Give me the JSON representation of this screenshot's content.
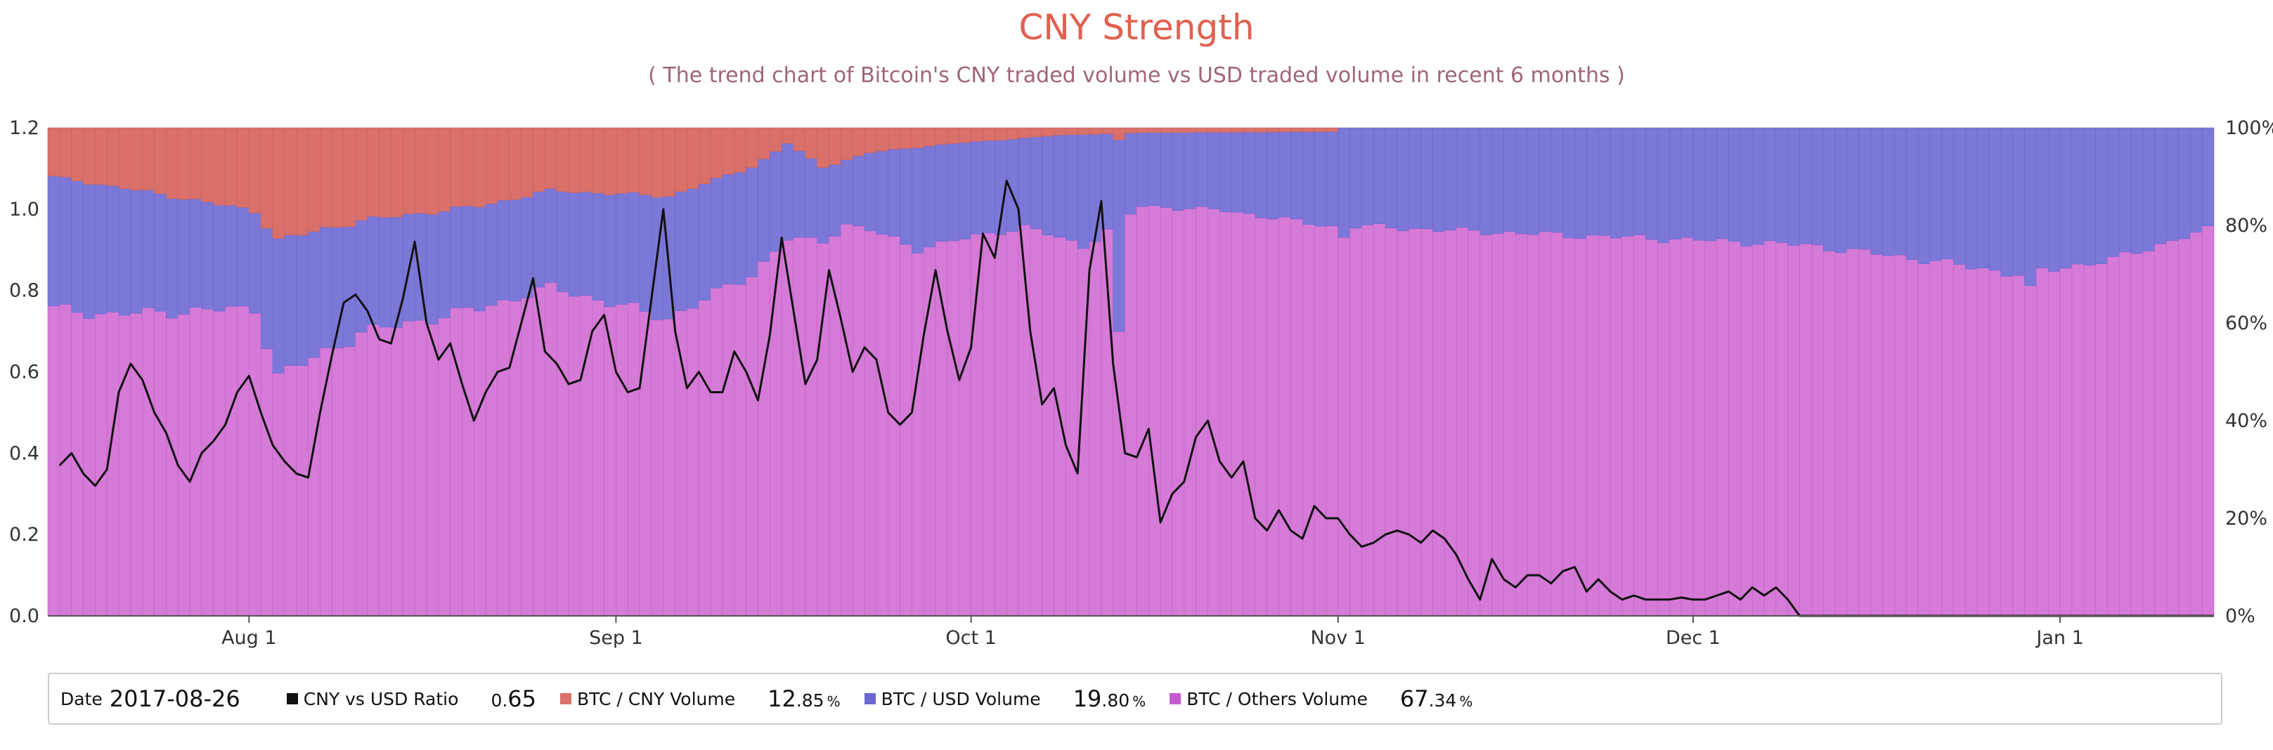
{
  "chart_data": {
    "type": "bar",
    "title": "CNY Strength",
    "subtitle": "( The trend chart of Bitcoin's CNY traded volume vs USD traded volume in recent 6 months )",
    "stacked": true,
    "x_range": [
      "2017-07-15",
      "2018-01-14"
    ],
    "x_ticks": [
      "Aug 1",
      "Sep 1",
      "Oct 1",
      "Nov 1",
      "Dec 1",
      "Jan 1"
    ],
    "y_left": {
      "ticks": [
        "0.0",
        "0.2",
        "0.4",
        "0.6",
        "0.8",
        "1.0",
        "1.2"
      ],
      "range": [
        0,
        1.2
      ]
    },
    "y_right": {
      "ticks": [
        "0%",
        "20%",
        "40%",
        "60%",
        "80%",
        "100%"
      ],
      "range": [
        0,
        100
      ]
    },
    "grid": false,
    "legend_position": "bottom",
    "series": [
      {
        "name": "BTC / CNY Volume",
        "color": "#d9706a",
        "unit": "%",
        "keyframes": [
          [
            "2017-07-15",
            10
          ],
          [
            "2017-07-23",
            13
          ],
          [
            "2017-08-01",
            17
          ],
          [
            "2017-08-03",
            23
          ],
          [
            "2017-08-10",
            19
          ],
          [
            "2017-08-20",
            16
          ],
          [
            "2017-08-26",
            12.85
          ],
          [
            "2017-09-05",
            14
          ],
          [
            "2017-09-12",
            8
          ],
          [
            "2017-09-15",
            3
          ],
          [
            "2017-09-18",
            8
          ],
          [
            "2017-09-22",
            5
          ],
          [
            "2017-09-30",
            3
          ],
          [
            "2017-10-08",
            1.5
          ],
          [
            "2017-10-15",
            1
          ],
          [
            "2017-10-31",
            0.8
          ],
          [
            "2017-11-01",
            0
          ],
          [
            "2018-01-14",
            0
          ]
        ]
      },
      {
        "name": "BTC / USD Volume",
        "color": "#7b78d8",
        "unit": "%",
        "keyframes": [
          [
            "2017-07-15",
            27
          ],
          [
            "2017-07-20",
            26
          ],
          [
            "2017-08-01",
            20
          ],
          [
            "2017-08-03",
            28
          ],
          [
            "2017-08-10",
            23
          ],
          [
            "2017-08-20",
            21
          ],
          [
            "2017-08-26",
            19.8
          ],
          [
            "2017-09-05",
            25
          ],
          [
            "2017-09-12",
            22
          ],
          [
            "2017-09-20",
            13
          ],
          [
            "2017-09-26",
            21
          ],
          [
            "2017-10-05",
            18
          ],
          [
            "2017-10-10",
            23
          ],
          [
            "2017-10-15",
            15
          ],
          [
            "2017-10-22",
            16
          ],
          [
            "2017-11-01",
            20
          ],
          [
            "2017-11-10",
            21
          ],
          [
            "2017-11-20",
            22
          ],
          [
            "2017-12-01",
            23
          ],
          [
            "2017-12-10",
            24
          ],
          [
            "2017-12-20",
            27
          ],
          [
            "2017-12-28",
            30
          ],
          [
            "2018-01-05",
            27
          ],
          [
            "2018-01-14",
            20
          ]
        ]
      },
      {
        "name": "BTC / Others Volume",
        "color": "#d67ad8",
        "unit": "%",
        "keyframes": [
          [
            "2017-07-15",
            63
          ],
          [
            "2017-07-20",
            61
          ],
          [
            "2017-08-01",
            63
          ],
          [
            "2017-08-03",
            49
          ],
          [
            "2017-08-10",
            58
          ],
          [
            "2017-08-20",
            63
          ],
          [
            "2017-08-26",
            67.34
          ],
          [
            "2017-09-05",
            61
          ],
          [
            "2017-09-12",
            70
          ],
          [
            "2017-09-20",
            79
          ],
          [
            "2017-09-26",
            76
          ],
          [
            "2017-10-05",
            79
          ],
          [
            "2017-10-10",
            76
          ],
          [
            "2017-10-15",
            84
          ],
          [
            "2017-10-22",
            83
          ],
          [
            "2017-11-01",
            80
          ],
          [
            "2017-11-10",
            79
          ],
          [
            "2017-11-20",
            78
          ],
          [
            "2017-12-01",
            77
          ],
          [
            "2017-12-10",
            76
          ],
          [
            "2017-12-20",
            73
          ],
          [
            "2017-12-28",
            70
          ],
          [
            "2018-01-05",
            73
          ],
          [
            "2018-01-14",
            80
          ]
        ]
      },
      {
        "name": "CNY vs USD Ratio",
        "color": "#111111",
        "type": "line",
        "axis": "left",
        "points": [
          [
            "2017-07-16",
            0.37
          ],
          [
            "2017-07-17",
            0.4
          ],
          [
            "2017-07-18",
            0.35
          ],
          [
            "2017-07-19",
            0.32
          ],
          [
            "2017-07-20",
            0.36
          ],
          [
            "2017-07-21",
            0.55
          ],
          [
            "2017-07-22",
            0.62
          ],
          [
            "2017-07-23",
            0.58
          ],
          [
            "2017-07-24",
            0.5
          ],
          [
            "2017-07-25",
            0.45
          ],
          [
            "2017-07-26",
            0.37
          ],
          [
            "2017-07-27",
            0.33
          ],
          [
            "2017-07-28",
            0.4
          ],
          [
            "2017-07-29",
            0.43
          ],
          [
            "2017-07-30",
            0.47
          ],
          [
            "2017-07-31",
            0.55
          ],
          [
            "2017-08-01",
            0.59
          ],
          [
            "2017-08-02",
            0.5
          ],
          [
            "2017-08-03",
            0.42
          ],
          [
            "2017-08-04",
            0.38
          ],
          [
            "2017-08-05",
            0.35
          ],
          [
            "2017-08-06",
            0.34
          ],
          [
            "2017-08-07",
            0.5
          ],
          [
            "2017-08-08",
            0.64
          ],
          [
            "2017-08-09",
            0.77
          ],
          [
            "2017-08-10",
            0.79
          ],
          [
            "2017-08-11",
            0.75
          ],
          [
            "2017-08-12",
            0.68
          ],
          [
            "2017-08-13",
            0.67
          ],
          [
            "2017-08-14",
            0.78
          ],
          [
            "2017-08-15",
            0.92
          ],
          [
            "2017-08-16",
            0.72
          ],
          [
            "2017-08-17",
            0.63
          ],
          [
            "2017-08-18",
            0.67
          ],
          [
            "2017-08-19",
            0.57
          ],
          [
            "2017-08-20",
            0.48
          ],
          [
            "2017-08-21",
            0.55
          ],
          [
            "2017-08-22",
            0.6
          ],
          [
            "2017-08-23",
            0.61
          ],
          [
            "2017-08-24",
            0.72
          ],
          [
            "2017-08-25",
            0.83
          ],
          [
            "2017-08-26",
            0.65
          ],
          [
            "2017-08-27",
            0.62
          ],
          [
            "2017-08-28",
            0.57
          ],
          [
            "2017-08-29",
            0.58
          ],
          [
            "2017-08-30",
            0.7
          ],
          [
            "2017-08-31",
            0.74
          ],
          [
            "2017-09-01",
            0.6
          ],
          [
            "2017-09-02",
            0.55
          ],
          [
            "2017-09-03",
            0.56
          ],
          [
            "2017-09-04",
            0.78
          ],
          [
            "2017-09-05",
            1.0
          ],
          [
            "2017-09-06",
            0.7
          ],
          [
            "2017-09-07",
            0.56
          ],
          [
            "2017-09-08",
            0.6
          ],
          [
            "2017-09-09",
            0.55
          ],
          [
            "2017-09-10",
            0.55
          ],
          [
            "2017-09-11",
            0.65
          ],
          [
            "2017-09-12",
            0.6
          ],
          [
            "2017-09-13",
            0.53
          ],
          [
            "2017-09-14",
            0.69
          ],
          [
            "2017-09-15",
            0.93
          ],
          [
            "2017-09-16",
            0.75
          ],
          [
            "2017-09-17",
            0.57
          ],
          [
            "2017-09-18",
            0.63
          ],
          [
            "2017-09-19",
            0.85
          ],
          [
            "2017-09-20",
            0.73
          ],
          [
            "2017-09-21",
            0.6
          ],
          [
            "2017-09-22",
            0.66
          ],
          [
            "2017-09-23",
            0.63
          ],
          [
            "2017-09-24",
            0.5
          ],
          [
            "2017-09-25",
            0.47
          ],
          [
            "2017-09-26",
            0.5
          ],
          [
            "2017-09-27",
            0.69
          ],
          [
            "2017-09-28",
            0.85
          ],
          [
            "2017-09-29",
            0.7
          ],
          [
            "2017-09-30",
            0.58
          ],
          [
            "2017-10-01",
            0.66
          ],
          [
            "2017-10-02",
            0.94
          ],
          [
            "2017-10-03",
            0.88
          ],
          [
            "2017-10-04",
            1.07
          ],
          [
            "2017-10-05",
            1.0
          ],
          [
            "2017-10-06",
            0.7
          ],
          [
            "2017-10-07",
            0.52
          ],
          [
            "2017-10-08",
            0.56
          ],
          [
            "2017-10-09",
            0.42
          ],
          [
            "2017-10-10",
            0.35
          ],
          [
            "2017-10-11",
            0.85
          ],
          [
            "2017-10-12",
            1.02
          ],
          [
            "2017-10-13",
            0.62
          ],
          [
            "2017-10-14",
            0.4
          ],
          [
            "2017-10-15",
            0.39
          ],
          [
            "2017-10-16",
            0.46
          ],
          [
            "2017-10-17",
            0.23
          ],
          [
            "2017-10-18",
            0.3
          ],
          [
            "2017-10-19",
            0.33
          ],
          [
            "2017-10-20",
            0.44
          ],
          [
            "2017-10-21",
            0.48
          ],
          [
            "2017-10-22",
            0.38
          ],
          [
            "2017-10-23",
            0.34
          ],
          [
            "2017-10-24",
            0.38
          ],
          [
            "2017-10-25",
            0.24
          ],
          [
            "2017-10-26",
            0.21
          ],
          [
            "2017-10-27",
            0.26
          ],
          [
            "2017-10-28",
            0.21
          ],
          [
            "2017-10-29",
            0.19
          ],
          [
            "2017-10-30",
            0.27
          ],
          [
            "2017-10-31",
            0.24
          ]
        ],
        "points_after_nov": [
          [
            "2017-11-01",
            0.24
          ],
          [
            "2017-11-02",
            0.2
          ],
          [
            "2017-11-03",
            0.17
          ],
          [
            "2017-11-04",
            0.18
          ],
          [
            "2017-11-05",
            0.2
          ],
          [
            "2017-11-06",
            0.21
          ],
          [
            "2017-11-07",
            0.2
          ],
          [
            "2017-11-08",
            0.18
          ],
          [
            "2017-11-09",
            0.21
          ],
          [
            "2017-11-10",
            0.19
          ],
          [
            "2017-11-11",
            0.15
          ],
          [
            "2017-11-12",
            0.09
          ],
          [
            "2017-11-13",
            0.04
          ],
          [
            "2017-11-14",
            0.14
          ],
          [
            "2017-11-15",
            0.09
          ],
          [
            "2017-11-16",
            0.07
          ],
          [
            "2017-11-17",
            0.1
          ],
          [
            "2017-11-18",
            0.1
          ],
          [
            "2017-11-19",
            0.08
          ],
          [
            "2017-11-20",
            0.11
          ],
          [
            "2017-11-21",
            0.12
          ],
          [
            "2017-11-22",
            0.06
          ],
          [
            "2017-11-23",
            0.09
          ],
          [
            "2017-11-24",
            0.06
          ],
          [
            "2017-11-25",
            0.04
          ],
          [
            "2017-11-26",
            0.05
          ],
          [
            "2017-11-27",
            0.04
          ],
          [
            "2017-11-28",
            0.04
          ],
          [
            "2017-11-29",
            0.04
          ],
          [
            "2017-11-30",
            0.045
          ]
        ],
        "points_late": [
          [
            "2017-12-01",
            0.04
          ],
          [
            "2017-12-02",
            0.04
          ],
          [
            "2017-12-03",
            0.05
          ],
          [
            "2017-12-04",
            0.06
          ],
          [
            "2017-12-05",
            0.04
          ],
          [
            "2017-12-06",
            0.07
          ],
          [
            "2017-12-07",
            0.05
          ],
          [
            "2017-12-08",
            0.07
          ],
          [
            "2017-12-09",
            0.04
          ],
          [
            "2017-12-10",
            0.0
          ],
          [
            "2018-01-14",
            0.0
          ]
        ]
      }
    ]
  },
  "legend": {
    "date_label": "Date",
    "date_value": "2017-08-26",
    "items": [
      {
        "name": "CNY vs USD Ratio",
        "color": "#111111",
        "value_int": "0.",
        "value_dec": "65",
        "value_pct": ""
      },
      {
        "name": "BTC / CNY Volume",
        "color": "#d9706a",
        "value_int": "12",
        "value_dec": ".85",
        "value_pct": "%"
      },
      {
        "name": "BTC / USD Volume",
        "color": "#6a66d2",
        "value_int": "19",
        "value_dec": ".80",
        "value_pct": "%"
      },
      {
        "name": "BTC / Others Volume",
        "color": "#c85ad0",
        "value_int": "67",
        "value_dec": ".34",
        "value_pct": "%"
      }
    ]
  }
}
